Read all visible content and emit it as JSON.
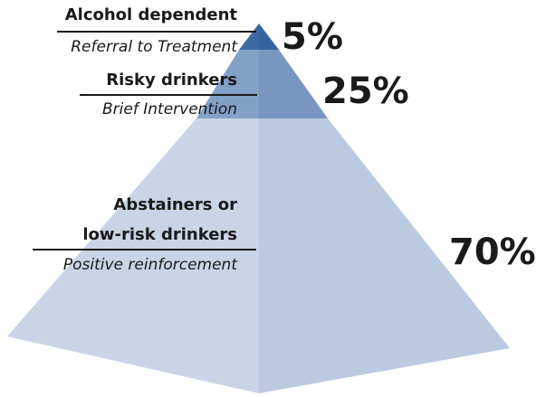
{
  "tiers": [
    {
      "title": "Alcohol dependent",
      "action": "Referral to Treatment",
      "percent": "5%",
      "share": 0.05,
      "colors": {
        "left": "#3d6aa5",
        "right": "#3563a0"
      }
    },
    {
      "title": "Risky drinkers",
      "action": "Brief Intervention",
      "percent": "25%",
      "share": 0.25,
      "colors": {
        "left": "#83a0c7",
        "right": "#7896c0"
      }
    },
    {
      "title_line1": "Abstainers or",
      "title_line2": "low-risk drinkers",
      "action": "Positive reinforcement",
      "percent": "70%",
      "share": 0.7,
      "colors": {
        "left": "#c9d4e6",
        "right": "#bccae0"
      }
    }
  ]
}
